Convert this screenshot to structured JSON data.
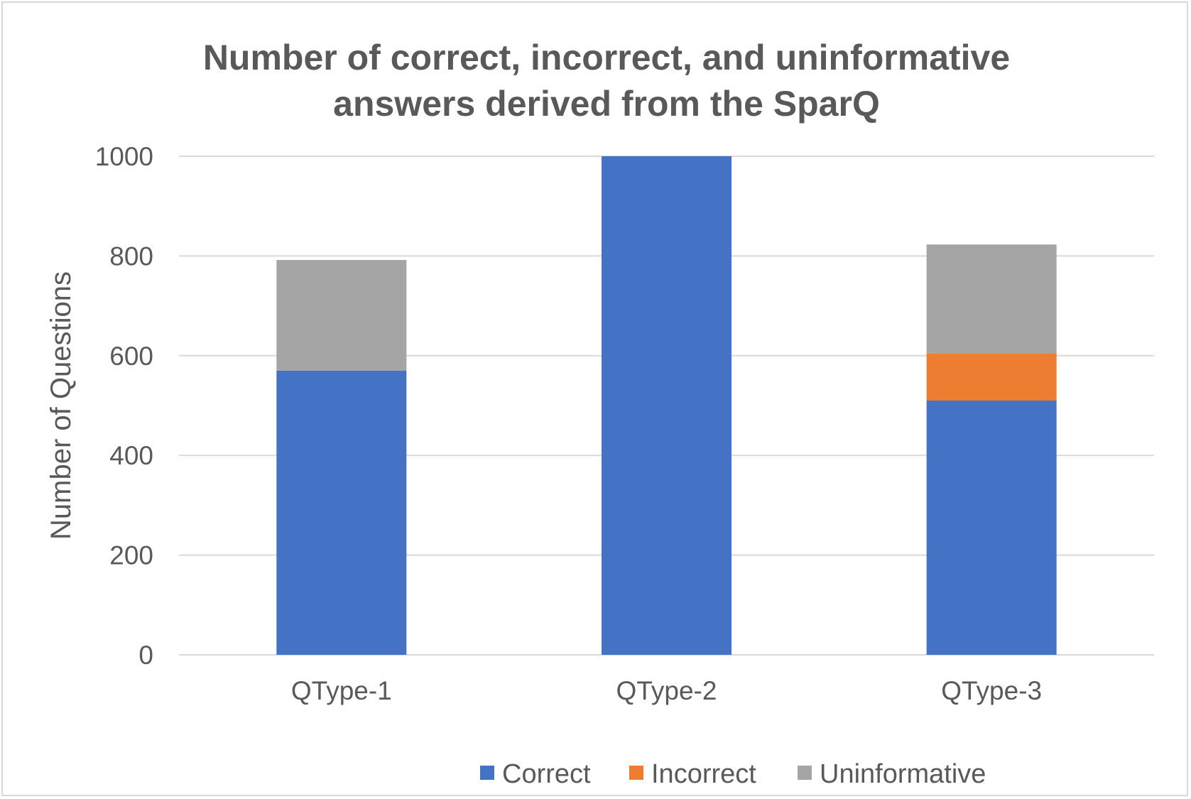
{
  "chart_data": {
    "type": "bar",
    "stacked": true,
    "title": "Number of correct, incorrect, and uninformative answers derived from the SparQ",
    "title_lines": [
      "Number of correct, incorrect, and uninformative",
      "answers derived from the SparQ"
    ],
    "xlabel": "",
    "ylabel": "Number of Questions",
    "ylim": [
      0,
      1000
    ],
    "yticks": [
      0,
      200,
      400,
      600,
      800,
      1000
    ],
    "grid": true,
    "legend_position": "bottom",
    "categories": [
      "QType-1",
      "QType-2",
      "QType-3"
    ],
    "series": [
      {
        "name": "Correct",
        "color": "#4472c4",
        "values": [
          570,
          1000,
          510
        ]
      },
      {
        "name": "Incorrect",
        "color": "#ed7d31",
        "values": [
          0,
          0,
          95
        ]
      },
      {
        "name": "Uninformative",
        "color": "#a5a5a5",
        "values": [
          222,
          0,
          218
        ]
      }
    ]
  }
}
